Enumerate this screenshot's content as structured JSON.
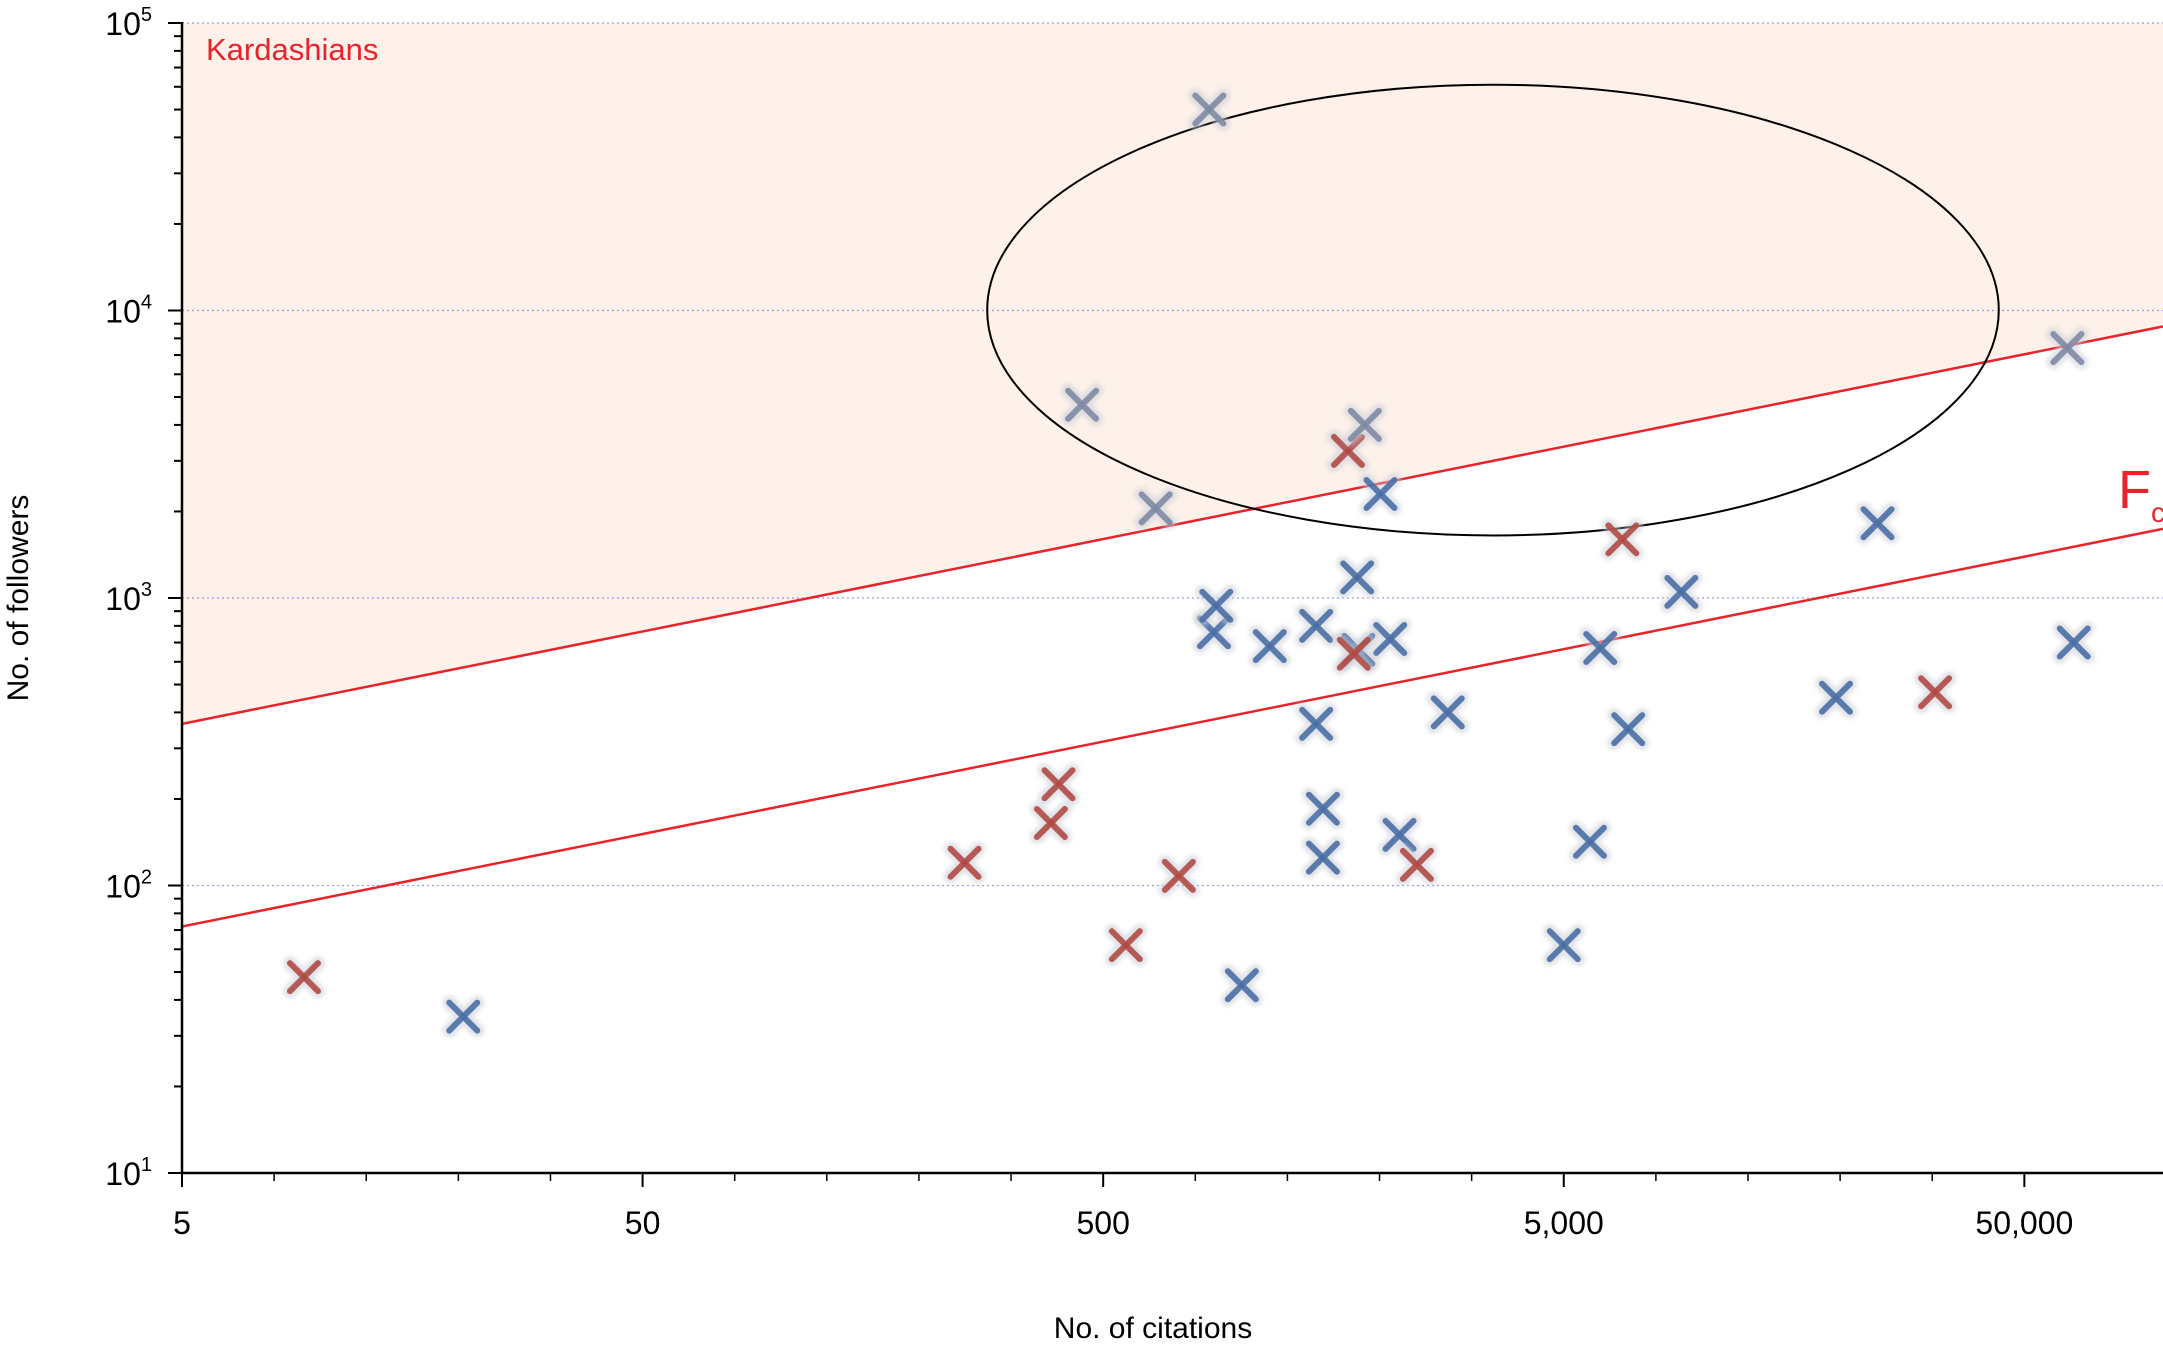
{
  "chart_data": {
    "type": "scatter",
    "title": "",
    "xlabel": "No. of citations",
    "ylabel": "No. of followers",
    "x_scale": "log",
    "y_scale": "log",
    "xlim": [
      5,
      100000
    ],
    "ylim": [
      10,
      100000
    ],
    "x_ticks": [
      {
        "value": 5,
        "label": "5"
      },
      {
        "value": 50,
        "label": "50"
      },
      {
        "value": 500,
        "label": "500"
      },
      {
        "value": 5000,
        "label": "5,000"
      },
      {
        "value": 50000,
        "label": "50,000"
      }
    ],
    "y_ticks": [
      {
        "value": 10,
        "base": "10",
        "exp": "1"
      },
      {
        "value": 100,
        "base": "10",
        "exp": "2"
      },
      {
        "value": 1000,
        "base": "10",
        "exp": "3"
      },
      {
        "value": 10000,
        "base": "10",
        "exp": "4"
      },
      {
        "value": 100000,
        "base": "10",
        "exp": "5"
      }
    ],
    "grid": "horizontal dotted at decades",
    "colors": {
      "blue": "#4a6fa5",
      "red": "#b04a44",
      "gray": "#7e8aa3",
      "line": "#e8232a",
      "region": "#fdf1ea",
      "grid": "#9a9ae6"
    },
    "annotations": {
      "region_label": "Kardashians",
      "line_label": "F",
      "line_label_sub": "c"
    },
    "region": {
      "lower": "k5_line",
      "upper": 100000
    },
    "lines": [
      {
        "id": "k5_line",
        "y_at_5": 365,
        "y_at_100000": 8800
      },
      {
        "id": "fc_line",
        "y_at_5": 72,
        "y_at_100000": 1740
      }
    ],
    "ellipse": {
      "cx": 4000,
      "cy": 10000,
      "x_range": [
        280,
        44000
      ],
      "y_range": [
        1650,
        61000
      ]
    },
    "series": [
      {
        "name": "",
        "color": "blue",
        "points": [
          [
            20.4,
            35
          ],
          [
            1000,
            45
          ],
          [
            1500,
            125
          ],
          [
            1500,
            185
          ],
          [
            1450,
            365
          ],
          [
            1450,
            800
          ],
          [
            870,
            760
          ],
          [
            880,
            940
          ],
          [
            1150,
            680
          ],
          [
            2200,
            150
          ],
          [
            2800,
            400
          ],
          [
            5000,
            62
          ],
          [
            5700,
            142
          ],
          [
            6000,
            670
          ],
          [
            6900,
            350
          ],
          [
            9000,
            1050
          ],
          [
            19500,
            450
          ],
          [
            24000,
            1820
          ],
          [
            64000,
            700
          ],
          [
            2100,
            720
          ],
          [
            2000,
            2300
          ],
          [
            1780,
            1180
          ],
          [
            1790,
            660
          ]
        ]
      },
      {
        "name": "",
        "color": "red",
        "points": [
          [
            9.2,
            48
          ],
          [
            250,
            120
          ],
          [
            400,
            225
          ],
          [
            385,
            165
          ],
          [
            560,
            62
          ],
          [
            730,
            108
          ],
          [
            2400,
            118
          ],
          [
            1750,
            640
          ],
          [
            6700,
            1600
          ],
          [
            32000,
            470
          ],
          [
            1700,
            3250
          ]
        ]
      },
      {
        "name": "",
        "color": "gray",
        "points": [
          [
            850,
            50000
          ],
          [
            450,
            4700
          ],
          [
            650,
            2050
          ],
          [
            1850,
            4000
          ],
          [
            62000,
            7400
          ]
        ]
      }
    ]
  }
}
